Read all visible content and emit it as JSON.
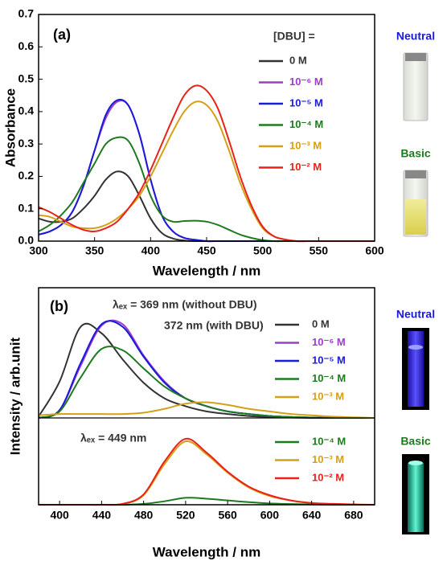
{
  "chart_data": [
    {
      "type": "line",
      "label": "(a)",
      "xlabel": "Wavelength / nm",
      "ylabel": "Absorbance",
      "x": [
        300,
        310,
        320,
        330,
        340,
        350,
        360,
        370,
        380,
        390,
        400,
        410,
        420,
        430,
        440,
        450,
        460,
        470,
        480,
        490,
        500,
        510,
        520,
        530,
        540,
        550,
        560,
        570,
        580,
        590,
        600
      ],
      "xlim": [
        300,
        600
      ],
      "xticks": [
        300,
        350,
        400,
        450,
        500,
        550,
        600
      ],
      "ylim": [
        0,
        0.7
      ],
      "yticks": [
        {
          "value": 0,
          "label": "0.0"
        },
        0.1,
        0.2,
        0.3,
        0.4,
        0.5,
        0.6,
        0.7
      ],
      "legend_title": "[DBU] =",
      "series": [
        {
          "name": "0 M",
          "color": "#333333",
          "values": [
            0.07,
            0.06,
            0.06,
            0.07,
            0.1,
            0.14,
            0.19,
            0.215,
            0.2,
            0.14,
            0.07,
            0.025,
            0.008,
            0.002,
            0,
            0,
            0,
            0,
            0,
            0,
            0,
            0,
            0,
            0,
            0,
            0,
            0,
            0,
            0,
            0,
            0
          ]
        },
        {
          "name": "10⁻⁶ M",
          "color": "#9b3fc9",
          "values": [
            0.02,
            0.03,
            0.05,
            0.09,
            0.17,
            0.28,
            0.38,
            0.43,
            0.42,
            0.33,
            0.19,
            0.08,
            0.03,
            0.01,
            0.004,
            0,
            0,
            0,
            0,
            0,
            0,
            0,
            0,
            0,
            0,
            0,
            0,
            0,
            0,
            0,
            0
          ]
        },
        {
          "name": "10⁻⁵ M",
          "color": "#1a1adb",
          "values": [
            0.02,
            0.03,
            0.05,
            0.09,
            0.17,
            0.28,
            0.39,
            0.435,
            0.42,
            0.33,
            0.19,
            0.08,
            0.03,
            0.01,
            0.004,
            0,
            0,
            0,
            0,
            0,
            0,
            0,
            0,
            0,
            0,
            0,
            0,
            0,
            0,
            0,
            0
          ]
        },
        {
          "name": "10⁻⁴ M",
          "color": "#1e7a1e",
          "values": [
            0.03,
            0.05,
            0.08,
            0.12,
            0.18,
            0.24,
            0.3,
            0.32,
            0.31,
            0.24,
            0.14,
            0.08,
            0.06,
            0.062,
            0.063,
            0.06,
            0.05,
            0.035,
            0.02,
            0.01,
            0.003,
            0,
            0,
            0,
            0,
            0,
            0,
            0,
            0,
            0,
            0
          ]
        },
        {
          "name": "10⁻³ M",
          "color": "#d4a017",
          "values": [
            0.08,
            0.075,
            0.06,
            0.045,
            0.04,
            0.04,
            0.05,
            0.07,
            0.1,
            0.14,
            0.2,
            0.27,
            0.34,
            0.4,
            0.43,
            0.42,
            0.37,
            0.28,
            0.18,
            0.1,
            0.04,
            0.015,
            0.005,
            0,
            0,
            0,
            0,
            0,
            0,
            0,
            0
          ]
        },
        {
          "name": "10⁻² M",
          "color": "#e8221a",
          "values": [
            0.105,
            0.09,
            0.07,
            0.05,
            0.035,
            0.03,
            0.04,
            0.06,
            0.1,
            0.15,
            0.22,
            0.3,
            0.38,
            0.45,
            0.48,
            0.465,
            0.41,
            0.31,
            0.2,
            0.11,
            0.045,
            0.015,
            0.005,
            0,
            0,
            0,
            0,
            0,
            0,
            0,
            0
          ]
        }
      ],
      "photo_labels": [
        "Neutral",
        "Basic"
      ]
    },
    {
      "type": "line",
      "label": "(b)",
      "xlabel": "Wavelength / nm",
      "ylabel": "Intensity / arb.unit",
      "x": [
        380,
        400,
        420,
        440,
        460,
        480,
        500,
        520,
        540,
        560,
        580,
        600,
        620,
        640,
        660,
        680,
        700
      ],
      "xlim": [
        380,
        700
      ],
      "xticks": [
        400,
        440,
        480,
        520,
        560,
        600,
        640,
        680
      ],
      "panels": [
        {
          "ylim": [
            0,
            1
          ],
          "annotations": [
            "λₑₓ = 369 nm (without DBU)",
            "372 nm (with DBU)"
          ],
          "series": [
            {
              "name": "0 M",
              "color": "#333333",
              "values": [
                0.01,
                0.28,
                0.7,
                0.65,
                0.45,
                0.27,
                0.15,
                0.09,
                0.05,
                0.03,
                0.015,
                0.008,
                0.003,
                0,
                0,
                0,
                0
              ]
            },
            {
              "name": "10⁻⁶ M",
              "color": "#9b3fc9",
              "values": [
                0,
                0.06,
                0.4,
                0.71,
                0.72,
                0.48,
                0.28,
                0.15,
                0.09,
                0.05,
                0.03,
                0.015,
                0.007,
                0.003,
                0,
                0,
                0
              ]
            },
            {
              "name": "10⁻⁵ M",
              "color": "#1a1adb",
              "values": [
                0,
                0.06,
                0.42,
                0.72,
                0.7,
                0.47,
                0.27,
                0.15,
                0.09,
                0.05,
                0.03,
                0.015,
                0.007,
                0.003,
                0,
                0,
                0
              ]
            },
            {
              "name": "10⁻⁴ M",
              "color": "#1e7a1e",
              "values": [
                0,
                0.05,
                0.31,
                0.53,
                0.52,
                0.38,
                0.24,
                0.15,
                0.09,
                0.05,
                0.03,
                0.015,
                0.007,
                0.003,
                0,
                0,
                0
              ]
            },
            {
              "name": "10⁻³ M",
              "color": "#d4a017",
              "values": [
                0.02,
                0.03,
                0.03,
                0.03,
                0.03,
                0.04,
                0.07,
                0.11,
                0.12,
                0.1,
                0.07,
                0.05,
                0.03,
                0.02,
                0.01,
                0.005,
                0
              ]
            }
          ]
        },
        {
          "ylim": [
            0,
            1
          ],
          "annotations": [
            "λₑₓ = 449 nm"
          ],
          "series": [
            {
              "name": "10⁻⁴ M",
              "color": "#1e7a1e",
              "values": [
                0,
                0,
                0,
                0,
                0,
                0.01,
                0.04,
                0.08,
                0.07,
                0.05,
                0.03,
                0.015,
                0.008,
                0.003,
                0,
                0,
                0
              ]
            },
            {
              "name": "10⁻³ M",
              "color": "#d4a017",
              "values": [
                0,
                0,
                0,
                0,
                0.01,
                0.11,
                0.47,
                0.73,
                0.58,
                0.37,
                0.2,
                0.1,
                0.05,
                0.02,
                0.01,
                0.003,
                0
              ]
            },
            {
              "name": "10⁻² M",
              "color": "#e8221a",
              "values": [
                0,
                0,
                0,
                0,
                0.01,
                0.12,
                0.5,
                0.76,
                0.6,
                0.38,
                0.21,
                0.11,
                0.05,
                0.02,
                0.01,
                0.003,
                0
              ]
            }
          ]
        }
      ],
      "photo_labels": [
        "Neutral",
        "Basic"
      ]
    }
  ]
}
